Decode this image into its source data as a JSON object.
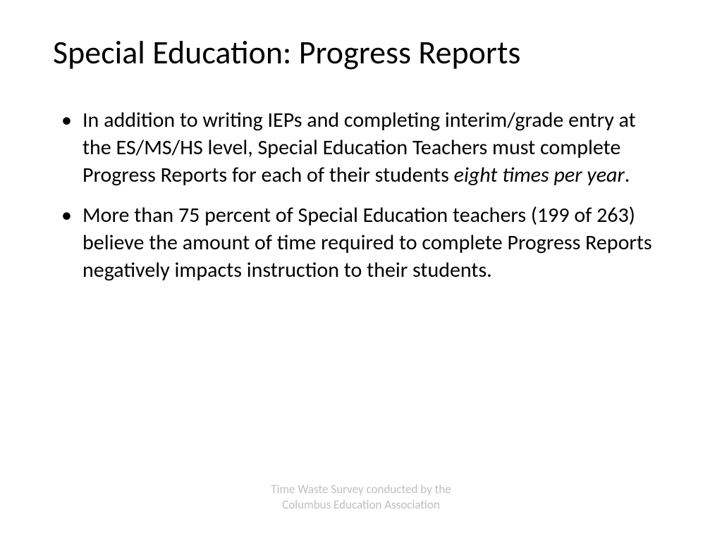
{
  "slide": {
    "title": "Special Education: Progress Reports",
    "bullets": [
      {
        "text_before": "In addition to writing IEPs and completing interim/grade entry at the ES/MS/HS level, Special Education Teachers must complete Progress Reports for each of their students ",
        "italic_text": "eight times per year",
        "text_after": "."
      },
      {
        "text_before": "More than 75 percent of Special Education teachers (199 of 263) believe the amount of time required to complete Progress Reports negatively impacts instruction to their students.",
        "italic_text": "",
        "text_after": ""
      }
    ],
    "footer_line1": "Time Waste Survey conducted by the",
    "footer_line2": "Columbus Education Association"
  },
  "styling": {
    "background_color": "#ffffff",
    "title_color": "#000000",
    "title_fontsize": 46,
    "body_color": "#000000",
    "body_fontsize": 30,
    "footer_color": "#bfbfbf",
    "footer_fontsize": 17,
    "font_family": "Calibri"
  }
}
